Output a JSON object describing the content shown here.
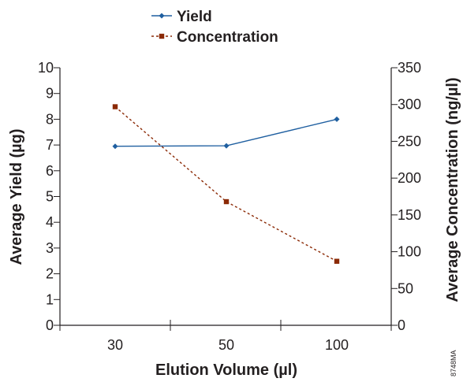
{
  "chart_data": {
    "type": "line",
    "categories": [
      "30",
      "50",
      "100"
    ],
    "series": [
      {
        "name": "Yield",
        "axis": "left",
        "values": [
          6.95,
          6.97,
          8.0
        ],
        "color": "#1f5fa0",
        "line_style": "solid",
        "marker": "diamond"
      },
      {
        "name": "Concentration",
        "axis": "right",
        "values": [
          297,
          168,
          87
        ],
        "color": "#8b2a06",
        "line_style": "dashed",
        "marker": "square"
      }
    ],
    "xlabel": "Elution Volume (µl)",
    "ylabel_left": "Average Yield (µg)",
    "ylabel_right": "Average Concentration (ng/µl)",
    "ylim_left": [
      0,
      10
    ],
    "ylim_right": [
      0,
      350
    ],
    "yticks_left": [
      "0",
      "1",
      "2",
      "3",
      "4",
      "5",
      "6",
      "7",
      "8",
      "9",
      "10"
    ],
    "yticks_right": [
      "0",
      "50",
      "100",
      "150",
      "200",
      "250",
      "300",
      "350"
    ],
    "grid": false,
    "legend_position": "top-center",
    "figure_code": "8748MA"
  }
}
